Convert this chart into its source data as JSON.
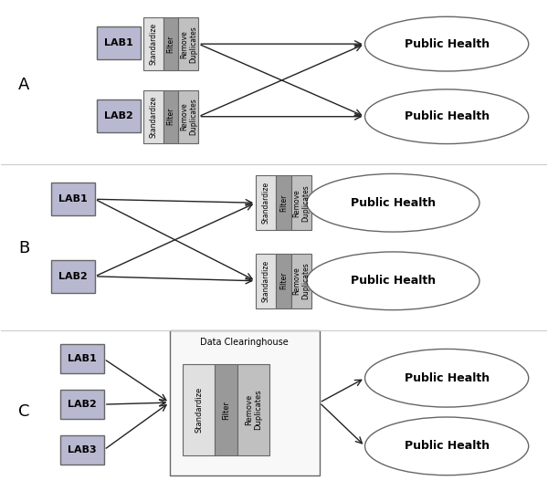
{
  "fig_width": 6.0,
  "fig_height": 5.38,
  "dpi": 100,
  "bg_color": "#ffffff",
  "lab_fill": "#b8b8d0",
  "lab_edge": "#666666",
  "std_fill": "#e0e0e0",
  "std_edge": "#666666",
  "filter_fill": "#999999",
  "filter_edge": "#666666",
  "dup_fill": "#c0c0c0",
  "dup_edge": "#666666",
  "ellipse_fill": "#ffffff",
  "ellipse_edge": "#666666",
  "arrow_color": "#222222",
  "section_labels": [
    "A",
    "B",
    "C"
  ],
  "section_label_fontsize": 13,
  "divider_color": "#cccccc"
}
